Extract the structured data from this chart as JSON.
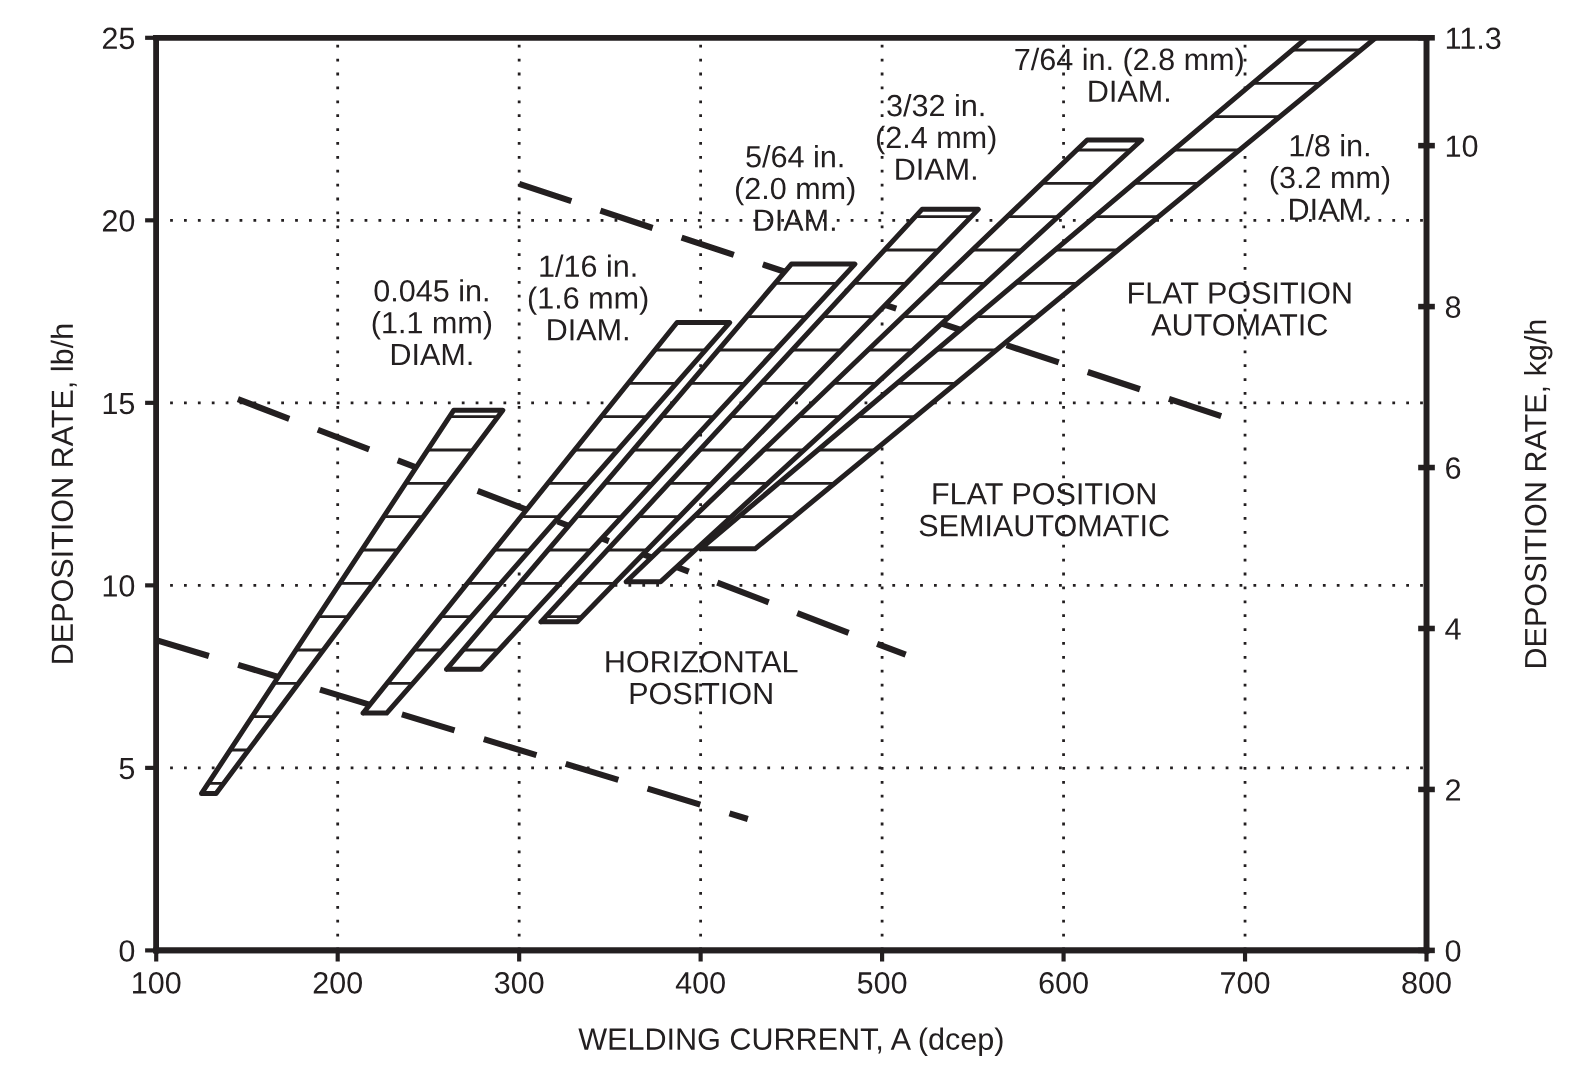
{
  "chart_data": {
    "type": "line",
    "xlabel": "WELDING CURRENT, A (dcep)",
    "ylabel": "DEPOSITION RATE, lb/h",
    "y2label": "DEPOSITION RATE, kg/h",
    "xlim": [
      100,
      800
    ],
    "xticks": [
      100,
      200,
      300,
      400,
      500,
      600,
      700,
      800
    ],
    "ylim": [
      0,
      25
    ],
    "yticks": [
      0,
      5,
      10,
      15,
      20,
      25
    ],
    "y2lim": [
      0,
      11.34
    ],
    "y2ticks": [
      0,
      2,
      4,
      6,
      8,
      10,
      {
        "value": 11.34,
        "label": "11.3"
      }
    ],
    "grid": true,
    "series": [
      {
        "type": "area",
        "color": "#231f20",
        "x": [
          125,
          133,
          291,
          264
        ],
        "values": [
          4.3,
          4.3,
          14.8,
          14.8
        ]
      },
      {
        "type": "area",
        "color": "#231f20",
        "x": [
          214,
          227,
          416,
          387
        ],
        "values": [
          6.5,
          6.5,
          17.2,
          17.2
        ]
      },
      {
        "type": "area",
        "color": "#231f20",
        "x": [
          260,
          279,
          485,
          450
        ],
        "values": [
          7.7,
          7.7,
          18.8,
          18.8
        ]
      },
      {
        "type": "area",
        "color": "#231f20",
        "x": [
          312,
          332,
          553,
          522
        ],
        "values": [
          9.0,
          9.0,
          20.3,
          20.3
        ]
      },
      {
        "type": "area",
        "color": "#231f20",
        "x": [
          359,
          378,
          643,
          613
        ],
        "values": [
          10.1,
          10.1,
          22.2,
          22.2
        ]
      },
      {
        "type": "area",
        "color": "#231f20",
        "x": [
          400,
          430,
          772,
          734
        ],
        "values": [
          11.0,
          11.0,
          25,
          25
        ]
      },
      {
        "line_style": "dashed",
        "color": "#231f20",
        "x": [
          100,
          426
        ],
        "values": [
          8.5,
          3.6
        ]
      },
      {
        "line_style": "dashed",
        "color": "#231f20",
        "x": [
          145,
          513
        ],
        "values": [
          15.1,
          8.1
        ]
      },
      {
        "line_style": "dashed",
        "color": "#231f20",
        "x": [
          300,
          689
        ],
        "values": [
          21.0,
          14.6
        ]
      }
    ],
    "annotations": [
      "0.045 in.\n(1.1 mm)\nDIAM.",
      "1/16 in.\n(1.6 mm)\nDIAM.",
      "5/64 in.\n(2.0 mm)\nDIAM.",
      "3/32 in.\n(2.4 mm)\nDIAM.",
      "7/64 in. (2.8 mm)\nDIAM.",
      "1/8 in.\n(3.2 mm)\nDIAM.",
      "HORIZONTAL\nPOSITION",
      "FLAT POSITION\nSEMIAUTOMATIC",
      "FLAT POSITION\nAUTOMATIC"
    ]
  }
}
